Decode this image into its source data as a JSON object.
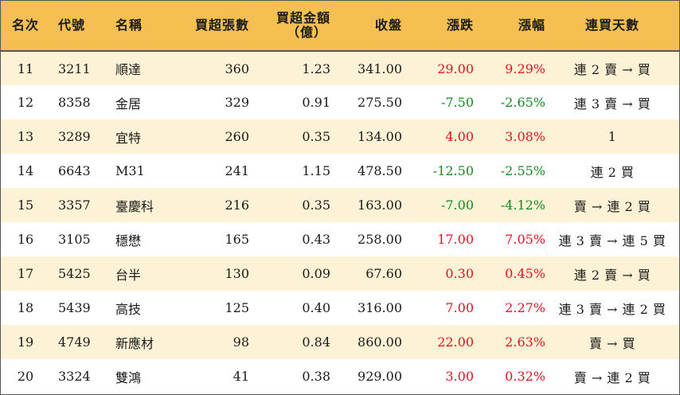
{
  "headers": {
    "rank": "名次",
    "code": "代號",
    "name": "名稱",
    "buy_volume": "買超張數",
    "buy_amount_line1": "買超金額",
    "buy_amount_line2": "（億）",
    "close": "收盤",
    "change": "漲跌",
    "change_pct": "漲幅",
    "consecutive_days": "連買天數"
  },
  "rows": [
    {
      "rank": "11",
      "code": "3211",
      "name": "順達",
      "buy_volume": "360",
      "buy_amount": "1.23",
      "close": "341.00",
      "change": "29.00",
      "change_pct": "9.29%",
      "trend": "up",
      "days": "連 2 賣 → 買"
    },
    {
      "rank": "12",
      "code": "8358",
      "name": "金居",
      "buy_volume": "329",
      "buy_amount": "0.91",
      "close": "275.50",
      "change": "-7.50",
      "change_pct": "-2.65%",
      "trend": "down",
      "days": "連 3 賣 → 買"
    },
    {
      "rank": "13",
      "code": "3289",
      "name": "宜特",
      "buy_volume": "260",
      "buy_amount": "0.35",
      "close": "134.00",
      "change": "4.00",
      "change_pct": "3.08%",
      "trend": "up",
      "days": "1"
    },
    {
      "rank": "14",
      "code": "6643",
      "name": "M31",
      "buy_volume": "241",
      "buy_amount": "1.15",
      "close": "478.50",
      "change": "-12.50",
      "change_pct": "-2.55%",
      "trend": "down",
      "days": "連 2 買"
    },
    {
      "rank": "15",
      "code": "3357",
      "name": "臺慶科",
      "buy_volume": "216",
      "buy_amount": "0.35",
      "close": "163.00",
      "change": "-7.00",
      "change_pct": "-4.12%",
      "trend": "down",
      "days": "賣 → 連 2 買"
    },
    {
      "rank": "16",
      "code": "3105",
      "name": "穩懋",
      "buy_volume": "165",
      "buy_amount": "0.43",
      "close": "258.00",
      "change": "17.00",
      "change_pct": "7.05%",
      "trend": "up",
      "days": "連 3 賣 → 連 5 買"
    },
    {
      "rank": "17",
      "code": "5425",
      "name": "台半",
      "buy_volume": "130",
      "buy_amount": "0.09",
      "close": "67.60",
      "change": "0.30",
      "change_pct": "0.45%",
      "trend": "up",
      "days": "連 2 賣 → 買"
    },
    {
      "rank": "18",
      "code": "5439",
      "name": "高技",
      "buy_volume": "125",
      "buy_amount": "0.40",
      "close": "316.00",
      "change": "7.00",
      "change_pct": "2.27%",
      "trend": "up",
      "days": "連 3 賣 → 連 2 買"
    },
    {
      "rank": "19",
      "code": "4749",
      "name": "新應材",
      "buy_volume": "98",
      "buy_amount": "0.84",
      "close": "860.00",
      "change": "22.00",
      "change_pct": "2.63%",
      "trend": "up",
      "days": "賣 → 買"
    },
    {
      "rank": "20",
      "code": "3324",
      "name": "雙鴻",
      "buy_volume": "41",
      "buy_amount": "0.38",
      "close": "929.00",
      "change": "3.00",
      "change_pct": "0.32%",
      "trend": "up",
      "days": "賣 → 連 2 買"
    }
  ],
  "colors": {
    "header_bg": "#f5c051",
    "odd_row_bg": "#fdf2d5",
    "up": "#e0141e",
    "down": "#138a1e"
  }
}
